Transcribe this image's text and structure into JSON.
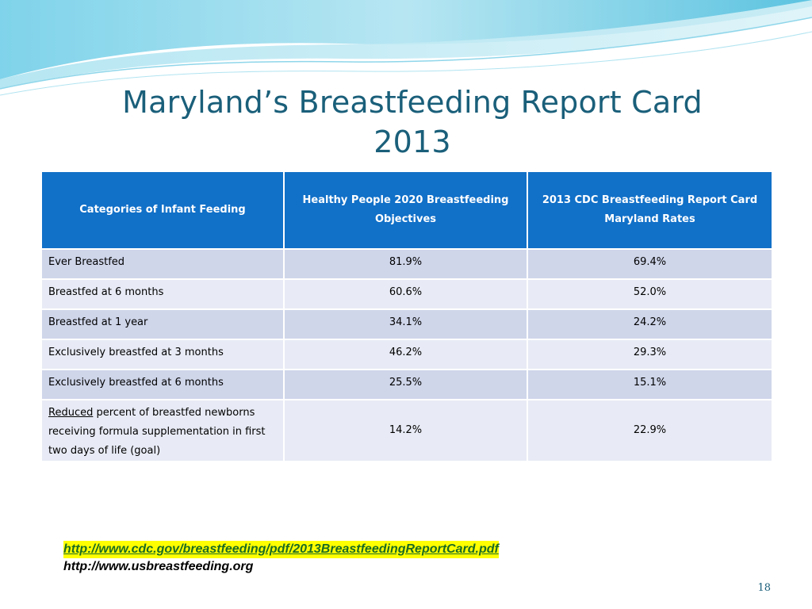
{
  "slide": {
    "title_line1": "Maryland’s Breastfeeding Report Card",
    "title_line2": "2013",
    "page_number": "18"
  },
  "table": {
    "headers": [
      "Categories of Infant Feeding",
      "Healthy People 2020 Breastfeeding Objectives",
      "2013 CDC Breastfeeding Report Card Maryland Rates"
    ],
    "rows": [
      {
        "category": "Ever Breastfed",
        "objective": "81.9%",
        "maryland": "69.4%"
      },
      {
        "category": "Breastfed at 6 months",
        "objective": "60.6%",
        "maryland": "52.0%"
      },
      {
        "category": "Breastfed at 1 year",
        "objective": "34.1%",
        "maryland": "24.2%"
      },
      {
        "category": "Exclusively breastfed at 3 months",
        "objective": "46.2%",
        "maryland": "29.3%"
      },
      {
        "category": "Exclusively breastfed at 6 months",
        "objective": "25.5%",
        "maryland": "15.1%"
      },
      {
        "category_underlined": "Reduced",
        "category_rest": " percent of breastfed newborns receiving formula supplementation in first two days of life (goal)",
        "objective": "14.2%",
        "maryland": "22.9%"
      }
    ]
  },
  "links": {
    "cdc": "http://www.cdc.gov/breastfeeding/pdf/2013BreastfeedingReportCard.pdf",
    "usbf": "http://www.usbreastfeeding.org"
  },
  "colors": {
    "title": "#1a5f7a",
    "header_bg": "#1170c8",
    "row_dark": "#cfd6ea",
    "row_light": "#e8ebf5",
    "link_highlight": "#ffff00",
    "link_text": "#1b6b22"
  }
}
